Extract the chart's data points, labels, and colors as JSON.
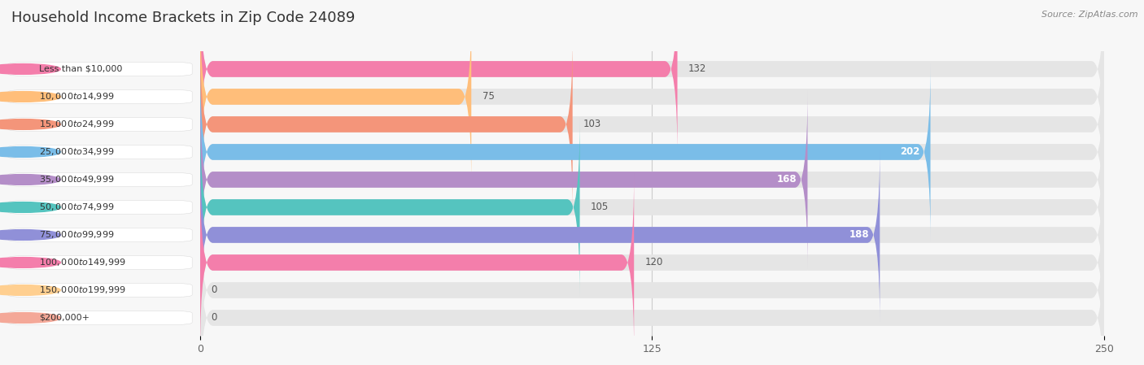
{
  "title": "Household Income Brackets in Zip Code 24089",
  "source": "Source: ZipAtlas.com",
  "categories": [
    "Less than $10,000",
    "$10,000 to $14,999",
    "$15,000 to $24,999",
    "$25,000 to $34,999",
    "$35,000 to $49,999",
    "$50,000 to $74,999",
    "$75,000 to $99,999",
    "$100,000 to $149,999",
    "$150,000 to $199,999",
    "$200,000+"
  ],
  "values": [
    132,
    75,
    103,
    202,
    168,
    105,
    188,
    120,
    0,
    0
  ],
  "bar_colors": [
    "#F47EAB",
    "#FFBE7A",
    "#F4957A",
    "#7ABDE8",
    "#B48EC8",
    "#55C4BF",
    "#9090D8",
    "#F47EAB",
    "#FFCF90",
    "#F4A898"
  ],
  "xlim_max": 250,
  "xticks": [
    0,
    125,
    250
  ],
  "bg_color": "#f7f7f7",
  "bar_bg_color": "#e5e5e5",
  "title_fontsize": 13,
  "tick_fontsize": 9,
  "value_fontsize": 8.5,
  "label_fontsize": 8,
  "bar_height": 0.58,
  "fig_width": 14.06,
  "fig_height": 4.49,
  "inside_label_threshold": 160
}
